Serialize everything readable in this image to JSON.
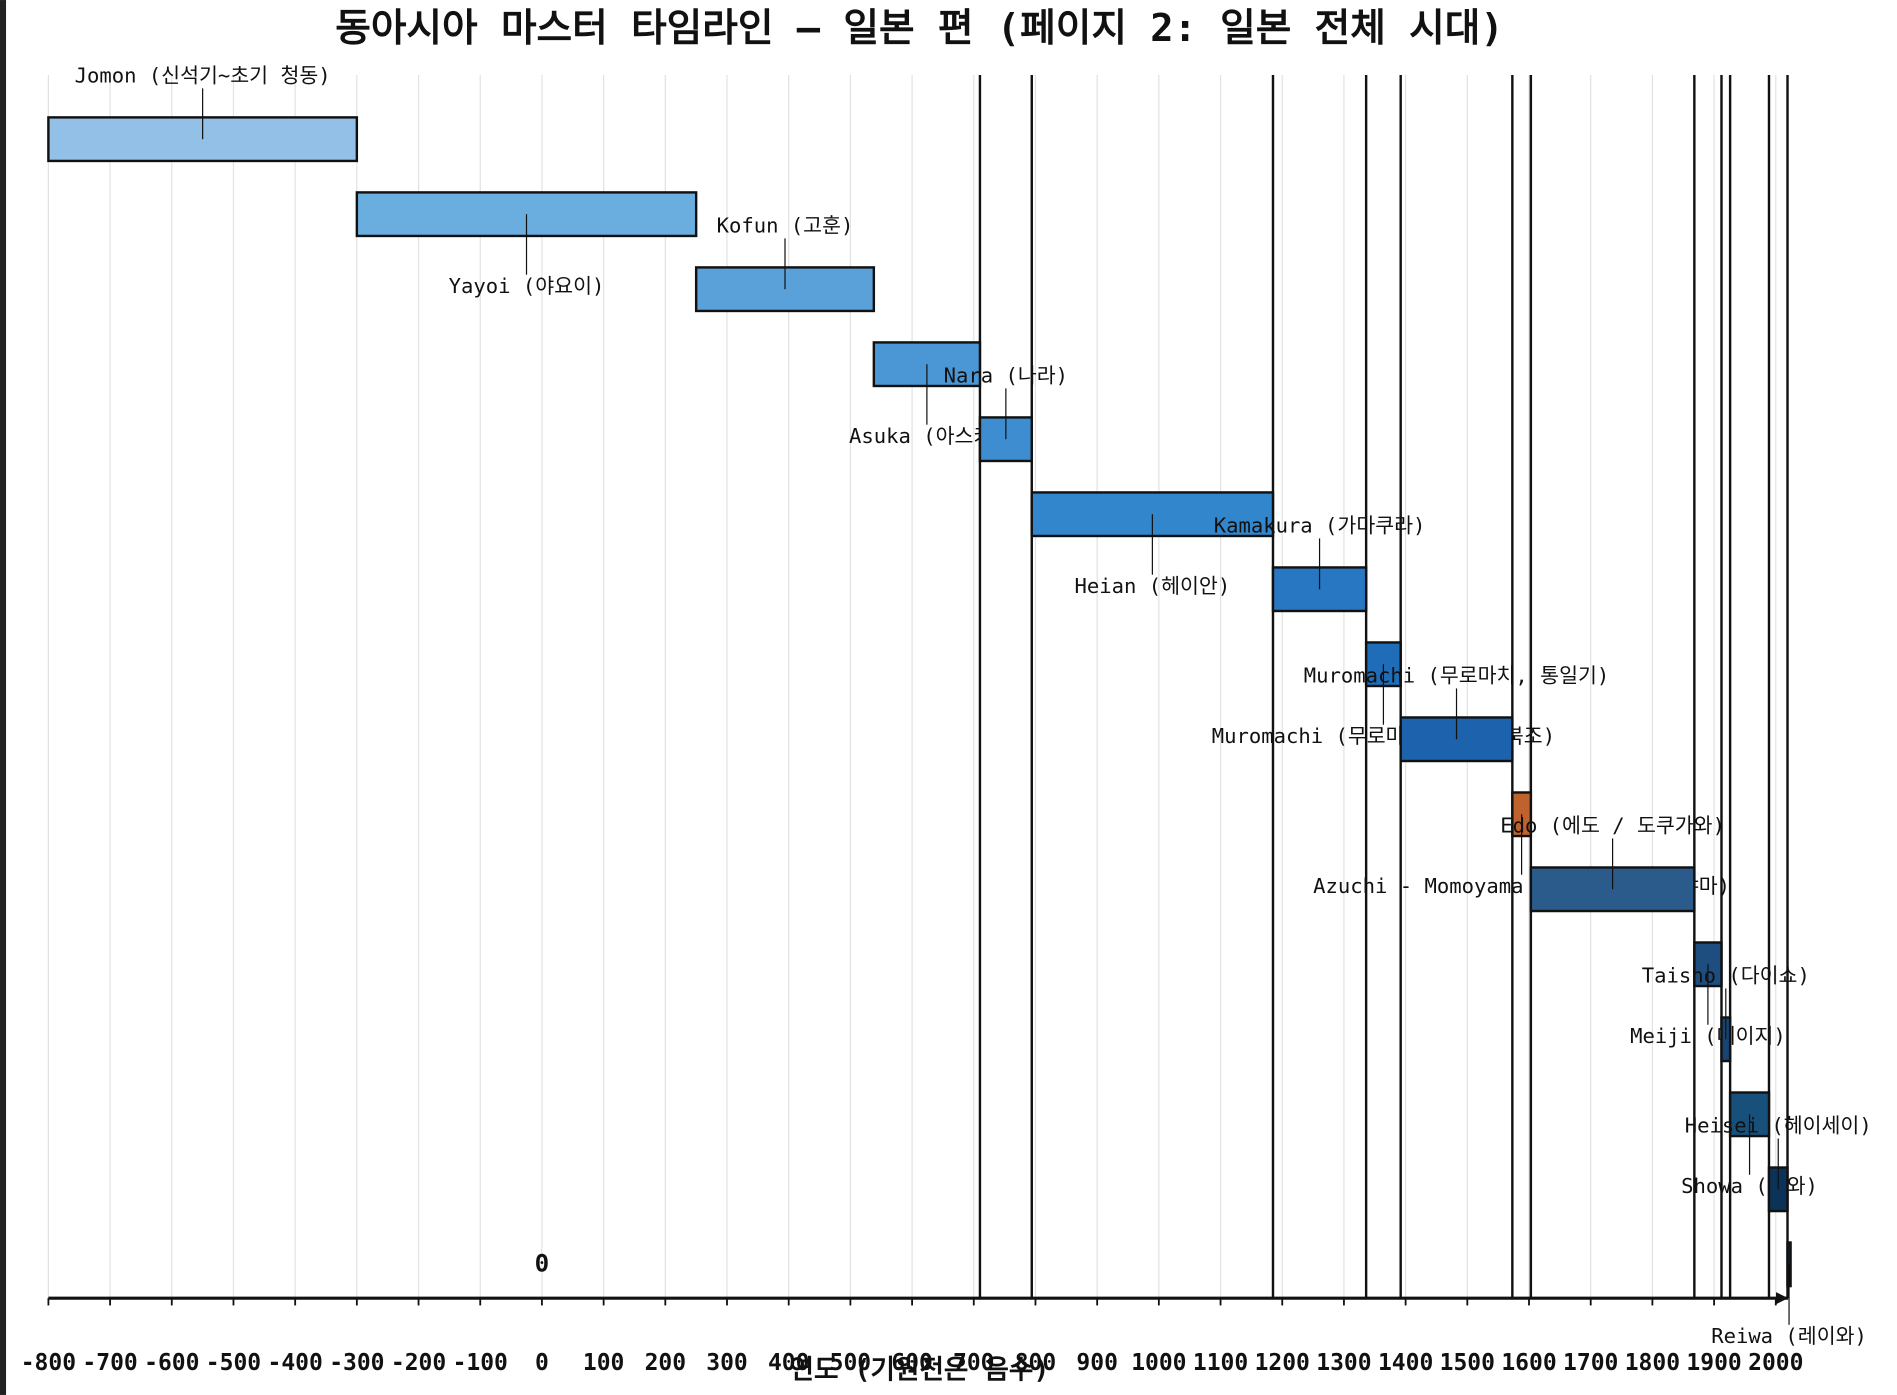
{
  "chart_data": {
    "type": "timeline",
    "title": "동아시아 마스터 타임라인 — 일본 편 (페이지 2: 일본 전체 시대)",
    "xlabel": "연도 (기원전은 음수)",
    "series": [
      {
        "name": "Jomon (신석기~초기 청동)",
        "start": -800,
        "end": -300,
        "color": "#92c0e6"
      },
      {
        "name": "Yayoi (야요이)",
        "start": -300,
        "end": 250,
        "color": "#6aaee0"
      },
      {
        "name": "Kofun (고훈)",
        "start": 250,
        "end": 538,
        "color": "#5aa1d9"
      },
      {
        "name": "Asuka (아스카)",
        "start": 538,
        "end": 710,
        "color": "#4b97d5"
      },
      {
        "name": "Nara (나라)",
        "start": 710,
        "end": 794,
        "color": "#3d8dd0"
      },
      {
        "name": "Heian (헤이안)",
        "start": 794,
        "end": 1185,
        "color": "#3186cc"
      },
      {
        "name": "Kamakura (가마쿠라)",
        "start": 1185,
        "end": 1336,
        "color": "#2777c2"
      },
      {
        "name": "Muromachi (무로마치 초기/남북조)",
        "start": 1336,
        "end": 1392,
        "color": "#1f6db8"
      },
      {
        "name": "Muromachi (무로마치, 통일기)",
        "start": 1392,
        "end": 1573,
        "color": "#1c62ad"
      },
      {
        "name": "Azuchi - Momoyama (아즈치 · 모모야마)",
        "start": 1573,
        "end": 1603,
        "color": "#c0622d"
      },
      {
        "name": "Edo (에도 / 도쿠가와)",
        "start": 1603,
        "end": 1868,
        "color": "#2a5b8a"
      },
      {
        "name": "Meiji (메이지)",
        "start": 1868,
        "end": 1912,
        "color": "#1e4e80"
      },
      {
        "name": "Taisho (다이쇼)",
        "start": 1912,
        "end": 1926,
        "color": "#164574"
      },
      {
        "name": "Showa (쇼와)",
        "start": 1926,
        "end": 1989,
        "color": "#17507a"
      },
      {
        "name": "Heisei (헤이세이)",
        "start": 1989,
        "end": 2019,
        "color": "#0b3358"
      },
      {
        "name": "Reiwa (레이와)",
        "start": 2019,
        "end": 2024,
        "color": "#0a2c4c"
      }
    ],
    "annotations": [
      {
        "text": "0",
        "x": 0
      }
    ],
    "xlim": [
      -800,
      2020
    ],
    "xticks": [
      -800,
      -700,
      -600,
      -500,
      -400,
      -300,
      -200,
      -100,
      0,
      100,
      200,
      300,
      400,
      500,
      600,
      700,
      800,
      900,
      1000,
      1100,
      1200,
      1300,
      1400,
      1500,
      1600,
      1700,
      1800,
      1900,
      2000
    ],
    "grid": true
  }
}
